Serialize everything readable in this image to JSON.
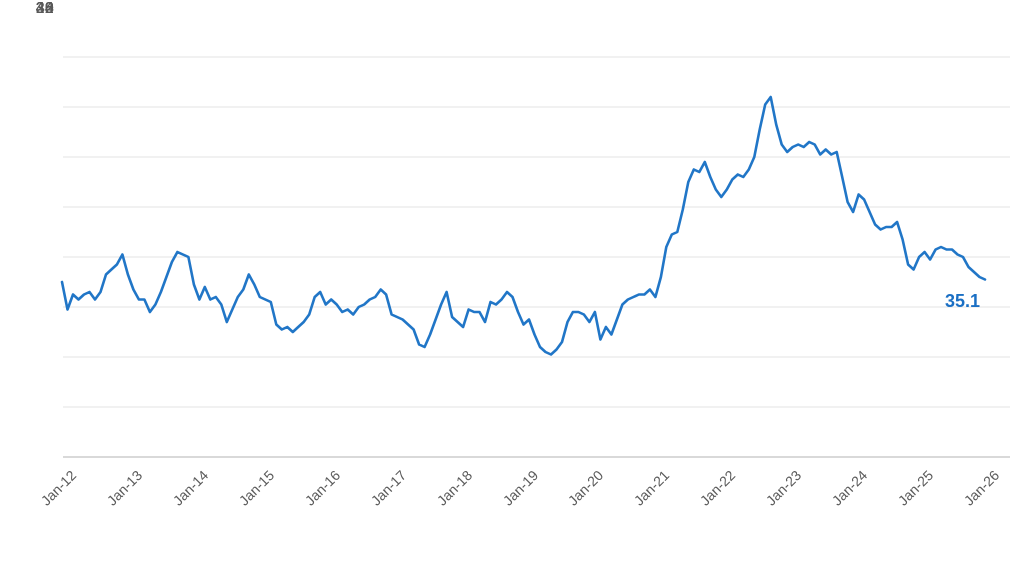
{
  "chart_data": {
    "type": "line",
    "title": "",
    "frequency": "monthly",
    "x_range": [
      "Jan-12",
      "Jan-26"
    ],
    "x_tick_labels": [
      "Jan-12",
      "Jan-13",
      "Jan-14",
      "Jan-15",
      "Jan-16",
      "Jan-17",
      "Jan-18",
      "Jan-19",
      "Jan-20",
      "Jan-21",
      "Jan-22",
      "Jan-23",
      "Jan-24",
      "Jan-25",
      "Jan-26"
    ],
    "y_tick_labels": [
      "44",
      "42",
      "40",
      "38",
      "36",
      "34",
      "32",
      "30",
      "28"
    ],
    "ylim": [
      28,
      44
    ],
    "grid": "horizontal",
    "legend": "none",
    "line_color": "#2176c7",
    "gridline_color": "#e3e3e3",
    "axis_line_color": "#b3b3b3",
    "tick_label_color": "#595959",
    "series": [
      {
        "name": "value",
        "color": "#2176c7",
        "values": [
          35.0,
          33.9,
          34.5,
          34.3,
          34.5,
          34.6,
          34.3,
          34.6,
          35.3,
          35.5,
          35.7,
          36.1,
          35.3,
          34.7,
          34.3,
          34.3,
          33.8,
          34.1,
          34.6,
          35.2,
          35.8,
          36.2,
          36.1,
          36.0,
          34.9,
          34.3,
          34.8,
          34.3,
          34.4,
          34.1,
          33.4,
          33.9,
          34.4,
          34.7,
          35.3,
          34.9,
          34.4,
          34.3,
          34.2,
          33.3,
          33.1,
          33.2,
          33.0,
          33.2,
          33.4,
          33.7,
          34.4,
          34.6,
          34.1,
          34.3,
          34.1,
          33.8,
          33.9,
          33.7,
          34.0,
          34.1,
          34.3,
          34.4,
          34.7,
          34.5,
          33.7,
          33.6,
          33.5,
          33.3,
          33.1,
          32.5,
          32.4,
          32.9,
          33.5,
          34.1,
          34.6,
          33.6,
          33.4,
          33.2,
          33.9,
          33.8,
          33.8,
          33.4,
          34.2,
          34.1,
          34.3,
          34.6,
          34.4,
          33.8,
          33.3,
          33.5,
          32.9,
          32.4,
          32.2,
          32.1,
          32.3,
          32.6,
          33.4,
          33.8,
          33.8,
          33.7,
          33.4,
          33.8,
          32.7,
          33.2,
          32.9,
          33.5,
          34.1,
          34.3,
          34.4,
          34.5,
          34.5,
          34.7,
          34.4,
          35.2,
          36.4,
          36.9,
          37.0,
          37.9,
          39.0,
          39.5,
          39.4,
          39.8,
          39.2,
          38.7,
          38.4,
          38.7,
          39.1,
          39.3,
          39.2,
          39.5,
          40.0,
          41.1,
          42.1,
          42.4,
          41.3,
          40.5,
          40.2,
          40.4,
          40.5,
          40.4,
          40.6,
          40.5,
          40.1,
          40.3,
          40.1,
          40.2,
          39.2,
          38.2,
          37.8,
          38.5,
          38.3,
          37.8,
          37.3,
          37.1,
          37.2,
          37.2,
          37.4,
          36.7,
          35.7,
          35.5,
          36.0,
          36.2,
          35.9,
          36.3,
          36.4,
          36.3,
          36.3,
          36.1,
          36.0,
          35.6,
          35.4,
          35.2,
          35.1
        ]
      }
    ],
    "end_label": {
      "text": "35.1",
      "color": "#1a6fc4"
    }
  }
}
